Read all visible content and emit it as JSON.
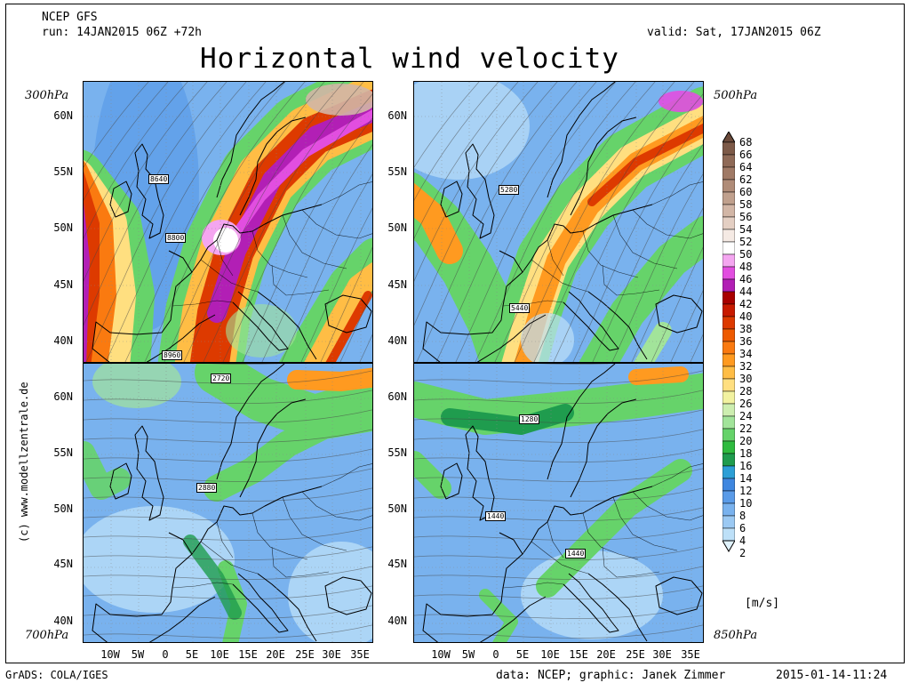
{
  "header": {
    "model": "NCEP GFS",
    "run": "run: 14JAN2015 06Z +72h",
    "valid": "valid: Sat, 17JAN2015 06Z",
    "title": "Horizontal wind velocity"
  },
  "levels": {
    "top_left": "300hPa",
    "top_right": "500hPa",
    "bottom_left": "700hPa",
    "bottom_right": "850hPa"
  },
  "axes": {
    "lat_top": [
      "60N",
      "55N",
      "50N",
      "45N",
      "40N"
    ],
    "lat_bottom": [
      "60N",
      "55N",
      "50N",
      "45N",
      "40N"
    ],
    "lon": [
      "10W",
      "5W",
      "0",
      "5E",
      "10E",
      "15E",
      "20E",
      "25E",
      "30E",
      "35E"
    ]
  },
  "contour_labels": {
    "p300": [
      "8640",
      "8800",
      "8960"
    ],
    "p500": [
      "5280",
      "5440"
    ],
    "p700": [
      "2720",
      "2880"
    ],
    "p850": [
      "1280",
      "1440",
      "1440"
    ]
  },
  "colorbar": {
    "unit": "[m/s]",
    "ticks": [
      "68",
      "66",
      "64",
      "62",
      "60",
      "58",
      "56",
      "54",
      "52",
      "50",
      "48",
      "46",
      "44",
      "42",
      "40",
      "38",
      "36",
      "34",
      "32",
      "30",
      "28",
      "26",
      "24",
      "22",
      "20",
      "18",
      "16",
      "14",
      "12",
      "10",
      "8",
      "6",
      "4",
      "2"
    ],
    "colors": [
      "#6b4a3a",
      "#7d5a48",
      "#8f6a57",
      "#a07a66",
      "#b08c78",
      "#c0a08d",
      "#d2b6a6",
      "#e4cfc3",
      "#f5eae4",
      "#ffffff",
      "#f4a6f0",
      "#e24ee0",
      "#b21fb5",
      "#a80000",
      "#c81a00",
      "#dd3a00",
      "#ee5a00",
      "#fa7a10",
      "#ff9a20",
      "#ffbd45",
      "#ffdf80",
      "#f2f2a0",
      "#cdeeb0",
      "#a2e49a",
      "#66d36a",
      "#2fbb3f",
      "#1f9c4e",
      "#2c9fd6",
      "#3f87e0",
      "#5a9be8",
      "#79b2ee",
      "#9bc9f3",
      "#bde0f8",
      "#e0f2fc"
    ]
  },
  "footer": {
    "left": "GrADS: COLA/IGES",
    "credit": "data: NCEP; graphic: Janek Zimmer",
    "timestamp": "2015-01-14-11:24",
    "copyright": "(c) www.modellzentrale.de"
  },
  "map_data": {
    "region": "Europe",
    "lat_range": [
      "38N",
      "62N"
    ],
    "lon_range": [
      "14W",
      "38E"
    ],
    "variable": "wind speed",
    "panels": [
      "300hPa",
      "500hPa",
      "700hPa",
      "850hPa"
    ]
  }
}
